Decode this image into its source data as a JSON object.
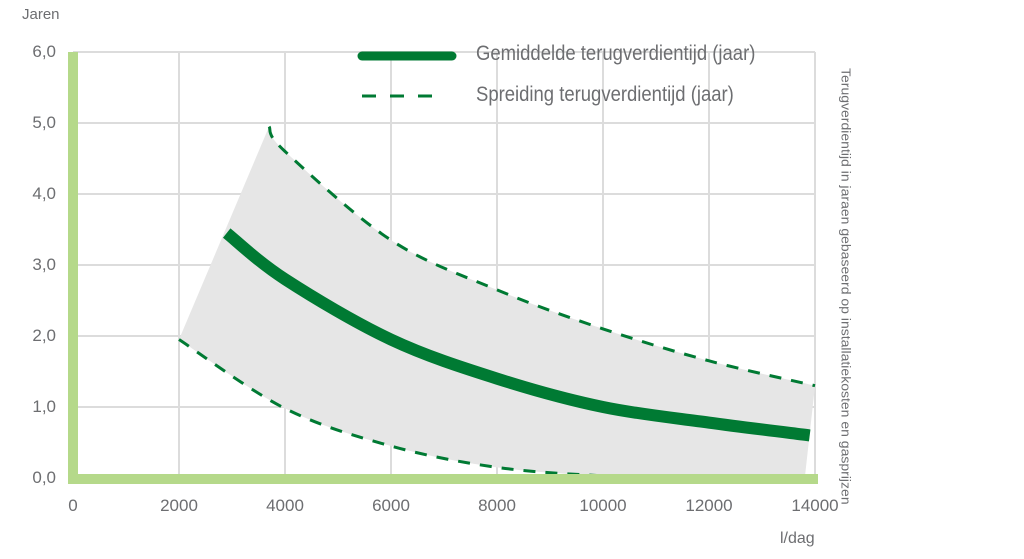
{
  "chart_data": {
    "type": "line",
    "title": "",
    "xlabel": "l/dag",
    "ylabel": "Jaren",
    "secondary_label": "Terugverdientijd in jaraen gebaseerd op installatiekosten en gasprijzen",
    "xlim": [
      0,
      14000
    ],
    "ylim": [
      0,
      6
    ],
    "x_ticks": [
      "0",
      "2000",
      "4000",
      "6000",
      "8000",
      "10000",
      "12000",
      "14000"
    ],
    "y_ticks": [
      "0,0",
      "1,0",
      "2,0",
      "3,0",
      "4,0",
      "5,0",
      "6,0"
    ],
    "grid": true,
    "legend_position": "top-right",
    "series": [
      {
        "name": "Gemiddelde terugverdientijd (jaar)",
        "style": "solid-thick",
        "color": "#007a33",
        "x": [
          2900,
          4000,
          6000,
          8000,
          10000,
          12000,
          13900
        ],
        "values": [
          3.45,
          2.8,
          1.95,
          1.4,
          1.0,
          0.78,
          0.6
        ]
      },
      {
        "name": "Spreiding terugverdientijd (jaar) - bovengrens",
        "style": "dashed",
        "color": "#007a33",
        "x": [
          3700,
          4000,
          6000,
          8000,
          10000,
          12000,
          14000
        ],
        "values": [
          4.95,
          4.6,
          3.35,
          2.65,
          2.1,
          1.65,
          1.3
        ]
      },
      {
        "name": "Spreiding terugverdientijd (jaar) - ondergrens",
        "style": "dashed",
        "color": "#007a33",
        "x": [
          2000,
          4000,
          6000,
          8000,
          10000,
          12000,
          13800
        ],
        "values": [
          1.95,
          0.98,
          0.45,
          0.15,
          0.03,
          -0.02,
          -0.05
        ]
      }
    ],
    "band_fill": "#e6e6e6",
    "axis_color": "#b5d98a"
  },
  "legend": {
    "items": [
      {
        "label": "Gemiddelde terugverdientijd (jaar)"
      },
      {
        "label": "Spreiding terugverdientijd (jaar)"
      }
    ]
  },
  "axes": {
    "y_title": "Jaren",
    "x_title": "l/dag",
    "side_title": "Terugverdientijd in jaraen gebaseerd op installatiekosten en gasprijzen"
  }
}
